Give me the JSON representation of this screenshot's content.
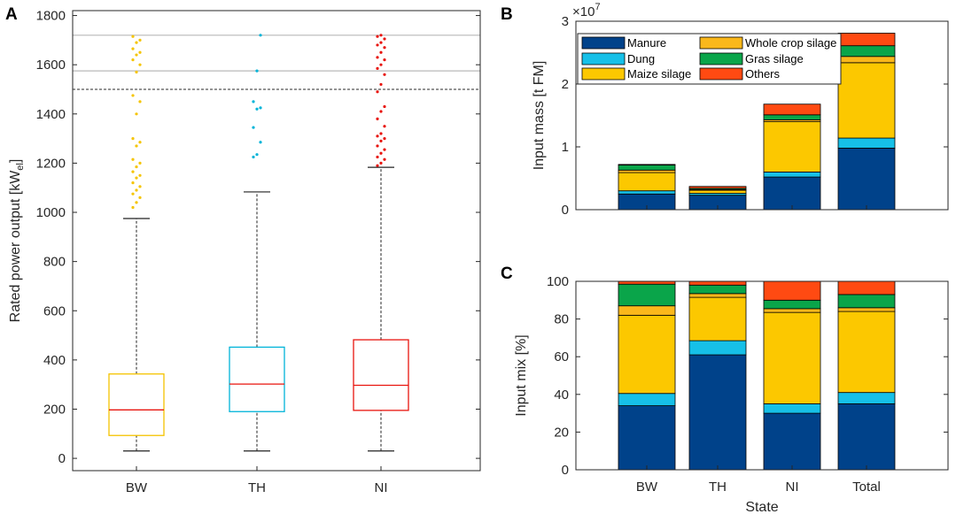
{
  "chart_data": [
    {
      "panel": "A",
      "type": "box",
      "ylabel": "Rated power output [kW_el]",
      "ylabel_main": "Rated power output [kW",
      "ylabel_sub": "el",
      "ylabel_close": "]",
      "ylim": [
        -50,
        1820
      ],
      "yticks": [
        0,
        200,
        400,
        600,
        800,
        1000,
        1200,
        1400,
        1600,
        1800
      ],
      "categories": [
        "BW",
        "TH",
        "NI"
      ],
      "colors": [
        "#f5c400",
        "#00b4d8",
        "#e8140e"
      ],
      "boxes": [
        {
          "name": "BW",
          "whisker_low": 30,
          "q1": 93,
          "median": 197,
          "q3": 343,
          "whisker_high": 975,
          "outliers": [
            1020,
            1040,
            1060,
            1075,
            1090,
            1105,
            1120,
            1140,
            1150,
            1165,
            1185,
            1200,
            1215,
            1270,
            1285,
            1300,
            1400,
            1450,
            1475,
            1570,
            1600,
            1620,
            1640,
            1650,
            1665,
            1690,
            1700,
            1715
          ]
        },
        {
          "name": "TH",
          "whisker_low": 30,
          "q1": 190,
          "median": 302,
          "q3": 452,
          "whisker_high": 1083,
          "outliers": [
            1225,
            1235,
            1285,
            1345,
            1420,
            1425,
            1450,
            1575,
            1720
          ]
        },
        {
          "name": "NI",
          "whisker_low": 30,
          "q1": 195,
          "median": 297,
          "q3": 482,
          "whisker_high": 1183,
          "outliers": [
            1190,
            1200,
            1215,
            1225,
            1240,
            1255,
            1270,
            1290,
            1300,
            1310,
            1320,
            1350,
            1380,
            1410,
            1430,
            1490,
            1520,
            1560,
            1585,
            1600,
            1620,
            1630,
            1650,
            1670,
            1680,
            1690,
            1705,
            1715,
            1720
          ]
        }
      ],
      "reference_lines": [
        {
          "value": 1720,
          "style": "solid"
        },
        {
          "value": 1575,
          "style": "solid"
        },
        {
          "value": 1500,
          "style": "dashed"
        }
      ]
    },
    {
      "panel": "B",
      "type": "stacked-bar",
      "ylabel": "Input mass [t FM]",
      "exponent_base": "×10",
      "exponent_power": "7",
      "ylim": [
        0,
        3
      ],
      "yticks": [
        0,
        1,
        2,
        3
      ],
      "categories": [
        "BW",
        "TH",
        "NI",
        "Total"
      ],
      "series": [
        {
          "name": "Manure",
          "values": [
            0.25,
            0.23,
            0.52,
            0.98
          ]
        },
        {
          "name": "Dung",
          "values": [
            0.05,
            0.03,
            0.08,
            0.16
          ]
        },
        {
          "name": "Maize silage",
          "values": [
            0.29,
            0.05,
            0.8,
            1.2
          ]
        },
        {
          "name": "Whole crop silage",
          "values": [
            0.04,
            0.01,
            0.03,
            0.1
          ]
        },
        {
          "name": "Gras silage",
          "values": [
            0.08,
            0.02,
            0.08,
            0.17
          ]
        },
        {
          "name": "Others",
          "values": [
            0.01,
            0.03,
            0.17,
            0.2
          ]
        }
      ]
    },
    {
      "panel": "C",
      "type": "stacked-bar",
      "ylabel": "Input mix [%]",
      "xlabel": "State",
      "ylim": [
        0,
        100
      ],
      "yticks": [
        0,
        20,
        40,
        60,
        80,
        100
      ],
      "categories": [
        "BW",
        "TH",
        "NI",
        "Total"
      ],
      "series": [
        {
          "name": "Manure",
          "values": [
            34,
            61,
            30,
            35
          ]
        },
        {
          "name": "Dung",
          "values": [
            6.5,
            7.5,
            5,
            6
          ]
        },
        {
          "name": "Maize silage",
          "values": [
            41.5,
            23,
            48.5,
            43
          ]
        },
        {
          "name": "Whole crop silage",
          "values": [
            5,
            2,
            2,
            2
          ]
        },
        {
          "name": "Gras silage",
          "values": [
            11.5,
            4.5,
            4.5,
            7
          ]
        },
        {
          "name": "Others",
          "values": [
            1.5,
            2,
            10,
            7
          ]
        }
      ]
    }
  ],
  "legend": [
    {
      "name": "Manure",
      "color": "#00428a"
    },
    {
      "name": "Dung",
      "color": "#16c0e8"
    },
    {
      "name": "Maize silage",
      "color": "#fcc800"
    },
    {
      "name": "Whole crop silage",
      "color": "#fab81b"
    },
    {
      "name": "Gras silage",
      "color": "#0aa54a"
    },
    {
      "name": "Others",
      "color": "#ff4a12"
    }
  ],
  "panel_labels": {
    "a": "A",
    "b": "B",
    "c": "C"
  }
}
